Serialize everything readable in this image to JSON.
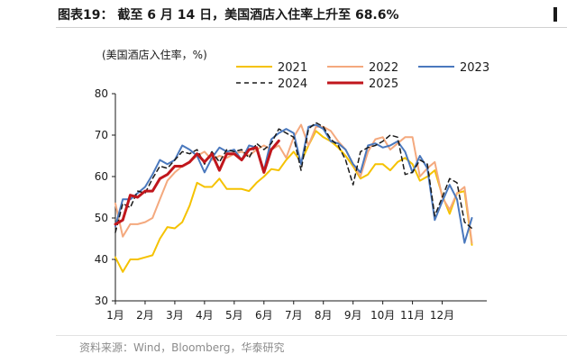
{
  "header": {
    "title": "图表19： 截至 6 月 14 日，美国酒店入住率上升至 68.6%"
  },
  "footer": {
    "source": "资料来源：Wind，Bloomberg，华泰研究"
  },
  "chart_data": {
    "type": "line",
    "unit_label": "(美国酒店入住率，%)",
    "ylim": [
      30,
      80
    ],
    "yticks": [
      30,
      40,
      50,
      60,
      70,
      80
    ],
    "xlim": [
      1,
      13.5
    ],
    "x_months": [
      "1月",
      "2月",
      "3月",
      "4月",
      "5月",
      "6月",
      "7月",
      "8月",
      "9月",
      "10月",
      "11月",
      "12月"
    ],
    "legend": {
      "position": "top-right",
      "columns": 3
    },
    "grid": false,
    "colors": {
      "2021": "#f5c200",
      "2022": "#f4a97e",
      "2023": "#4a78bd",
      "2024": "#1a1a1a",
      "2025": "#c0161c"
    },
    "series": [
      {
        "name": "2021",
        "style": "solid",
        "x": [
          1.0,
          1.25,
          1.5,
          1.75,
          2.0,
          2.25,
          2.5,
          2.75,
          3.0,
          3.25,
          3.5,
          3.75,
          4.0,
          4.25,
          4.5,
          4.75,
          5.0,
          5.25,
          5.5,
          5.75,
          6.0,
          6.25,
          6.5,
          6.75,
          7.0,
          7.25,
          7.5,
          7.75,
          8.0,
          8.25,
          8.5,
          8.75,
          9.0,
          9.25,
          9.5,
          9.75,
          10.0,
          10.25,
          10.5,
          10.75,
          11.0,
          11.25,
          11.5,
          11.75,
          12.0,
          12.25,
          12.5,
          12.75,
          13.0
        ],
        "values": [
          40.5,
          37.0,
          40.0,
          40.0,
          40.5,
          41.0,
          45.0,
          47.8,
          47.5,
          49.0,
          53.0,
          58.5,
          57.5,
          57.5,
          59.5,
          57.0,
          57.0,
          57.0,
          56.5,
          58.5,
          60.0,
          61.8,
          61.5,
          64.0,
          66.0,
          63.5,
          67.5,
          71.0,
          69.5,
          68.5,
          67.0,
          65.0,
          62.5,
          59.5,
          60.5,
          63.0,
          63.0,
          61.5,
          63.5,
          64.5,
          63.0,
          59.0,
          60.0,
          61.5,
          55.5,
          51.0,
          56.0,
          56.5,
          43.5
        ]
      },
      {
        "name": "2022",
        "style": "solid",
        "x": [
          1.0,
          1.25,
          1.5,
          1.75,
          2.0,
          2.25,
          2.5,
          2.75,
          3.0,
          3.25,
          3.5,
          3.75,
          4.0,
          4.25,
          4.5,
          4.75,
          5.0,
          5.25,
          5.5,
          5.75,
          6.0,
          6.25,
          6.5,
          6.75,
          7.0,
          7.25,
          7.5,
          7.75,
          8.0,
          8.25,
          8.5,
          8.75,
          9.0,
          9.25,
          9.5,
          9.75,
          10.0,
          10.25,
          10.5,
          10.75,
          11.0,
          11.25,
          11.5,
          11.75,
          12.0,
          12.25,
          12.5,
          12.75,
          13.0
        ],
        "values": [
          53.5,
          45.5,
          48.5,
          48.5,
          49.0,
          50.0,
          54.5,
          59.0,
          61.0,
          62.5,
          63.5,
          65.0,
          66.0,
          64.0,
          65.0,
          64.5,
          65.5,
          66.0,
          65.0,
          66.5,
          67.5,
          66.5,
          67.5,
          64.5,
          69.5,
          72.5,
          67.5,
          72.0,
          72.0,
          71.0,
          68.5,
          66.5,
          63.0,
          60.0,
          66.0,
          69.0,
          69.5,
          66.5,
          68.0,
          69.5,
          69.5,
          60.0,
          62.0,
          63.5,
          55.0,
          52.0,
          56.0,
          57.5,
          44.0
        ]
      },
      {
        "name": "2023",
        "style": "solid",
        "x": [
          1.0,
          1.25,
          1.5,
          1.75,
          2.0,
          2.25,
          2.5,
          2.75,
          3.0,
          3.25,
          3.5,
          3.75,
          4.0,
          4.25,
          4.5,
          4.75,
          5.0,
          5.25,
          5.5,
          5.75,
          6.0,
          6.25,
          6.5,
          6.75,
          7.0,
          7.25,
          7.5,
          7.75,
          8.0,
          8.25,
          8.5,
          8.75,
          9.0,
          9.25,
          9.5,
          9.75,
          10.0,
          10.25,
          10.5,
          10.75,
          11.0,
          11.25,
          11.5,
          11.75,
          12.0,
          12.25,
          12.5,
          12.75,
          13.0
        ],
        "values": [
          48.0,
          54.5,
          54.5,
          56.0,
          57.5,
          60.5,
          64.0,
          63.0,
          64.0,
          67.5,
          66.5,
          65.0,
          61.0,
          64.5,
          67.0,
          66.0,
          66.5,
          64.0,
          67.5,
          67.0,
          61.5,
          69.0,
          70.5,
          71.5,
          70.5,
          63.0,
          72.0,
          72.5,
          71.5,
          68.5,
          68.0,
          66.5,
          63.0,
          61.0,
          67.5,
          68.0,
          67.0,
          67.5,
          68.5,
          66.0,
          61.0,
          65.0,
          62.0,
          49.5,
          54.0,
          58.0,
          54.5,
          44.0,
          50.0
        ]
      },
      {
        "name": "2024",
        "style": "dashed",
        "x": [
          1.0,
          1.25,
          1.5,
          1.75,
          2.0,
          2.25,
          2.5,
          2.75,
          3.0,
          3.25,
          3.5,
          3.75,
          4.0,
          4.25,
          4.5,
          4.75,
          5.0,
          5.25,
          5.5,
          5.75,
          6.0,
          6.25,
          6.5,
          6.75,
          7.0,
          7.25,
          7.5,
          7.75,
          8.0,
          8.25,
          8.5,
          8.75,
          9.0,
          9.25,
          9.5,
          9.75,
          10.0,
          10.25,
          10.5,
          10.75,
          11.0,
          11.25,
          11.5,
          11.75,
          12.0,
          12.25,
          12.5,
          12.75,
          13.0
        ],
        "values": [
          46.5,
          53.5,
          52.5,
          56.5,
          56.0,
          59.5,
          62.5,
          62.0,
          64.0,
          66.0,
          65.5,
          66.5,
          63.0,
          66.0,
          63.5,
          66.5,
          66.0,
          66.5,
          64.5,
          68.0,
          66.5,
          68.0,
          71.5,
          70.5,
          69.5,
          61.5,
          71.5,
          73.0,
          72.0,
          69.0,
          67.5,
          64.0,
          58.0,
          66.0,
          67.0,
          67.5,
          68.5,
          70.0,
          69.5,
          60.5,
          61.0,
          64.0,
          63.0,
          50.5,
          55.0,
          59.5,
          58.5,
          49.0,
          47.5
        ]
      },
      {
        "name": "2025",
        "style": "solid-thick",
        "x": [
          1.0,
          1.25,
          1.5,
          1.75,
          2.0,
          2.25,
          2.5,
          2.75,
          3.0,
          3.25,
          3.5,
          3.75,
          4.0,
          4.25,
          4.5,
          4.75,
          5.0,
          5.25,
          5.5,
          5.75,
          6.0,
          6.25,
          6.5
        ],
        "values": [
          48.5,
          49.5,
          55.5,
          55.0,
          56.5,
          56.5,
          59.5,
          60.5,
          62.5,
          62.5,
          63.5,
          65.5,
          63.5,
          65.5,
          61.5,
          65.5,
          65.5,
          64.0,
          66.5,
          67.0,
          61.0,
          66.5,
          68.6
        ]
      }
    ]
  }
}
